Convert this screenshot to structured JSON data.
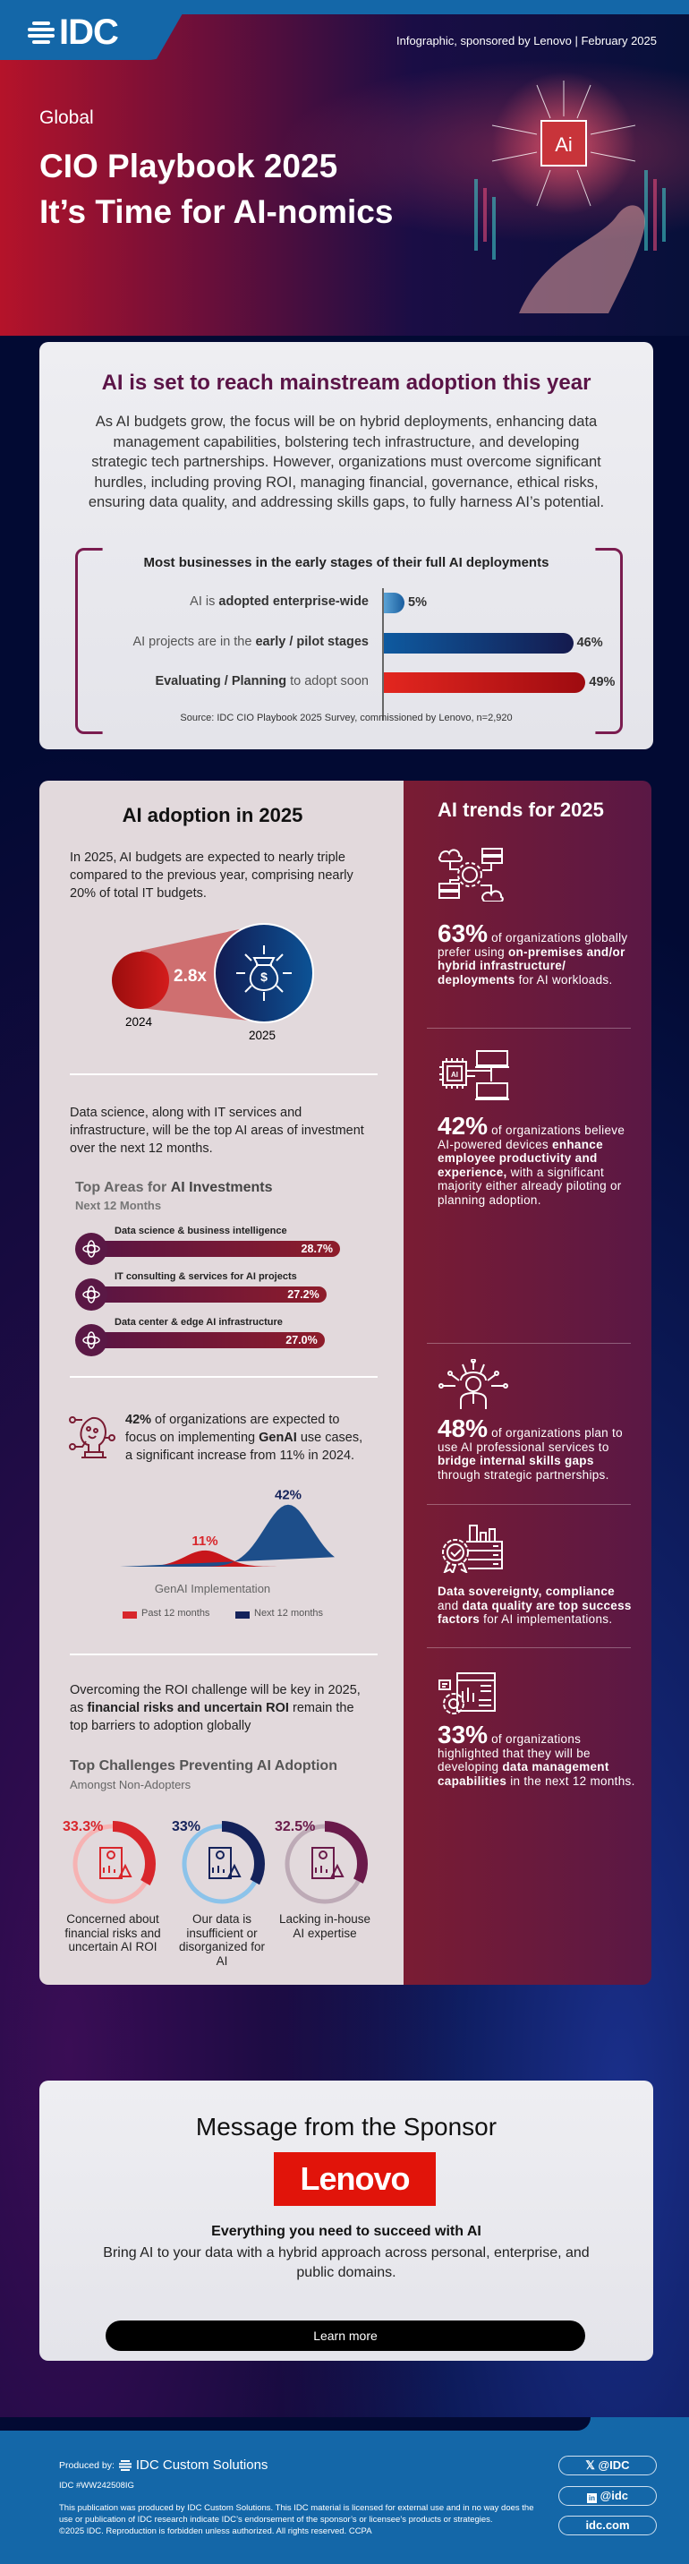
{
  "header": {
    "logo": "IDC",
    "sponsored": "Infographic, sponsored by Lenovo  |  February 2025",
    "region": "Global",
    "title_line1": "CIO Playbook 2025",
    "title_line2": "It’s Time for AI-nomics",
    "chip_label": "Ai"
  },
  "intro": {
    "title": "AI is set to reach mainstream adoption this year",
    "paragraph": "As AI budgets grow, the focus will be on hybrid deployments, enhancing data management capabilities, bolstering tech infrastructure, and developing strategic tech partnerships. However, organizations must overcome significant hurdles, including proving ROI, managing financial, governance, ethical risks, ensuring data quality, and addressing skills gaps, to fully harness AI’s potential."
  },
  "deployment_chart": {
    "title": "Most businesses in the early stages of their  full AI deployments",
    "source": "Source: IDC CIO Playbook 2025 Survey, commissioned by Lenovo, n=2,920",
    "rows": [
      {
        "pre": "AI is ",
        "bold": "adopted enterprise-wide",
        "post": "",
        "value": 5,
        "label": "5%"
      },
      {
        "pre": "AI projects are in the ",
        "bold": "early / pilot stages",
        "post": "",
        "value": 46,
        "label": "46%"
      },
      {
        "pre": "",
        "bold": "Evaluating / Planning",
        "post": " to adopt soon",
        "value": 49,
        "label": "49%"
      }
    ],
    "colors": [
      "#2f7fc0",
      "#0e4a8c",
      "#c8161b"
    ]
  },
  "adoption": {
    "title": "AI adoption in 2025",
    "para1": "In 2025, AI budgets are expected to nearly triple compared to the previous year, comprising nearly 20% of total IT budgets.",
    "multiplier": "2.8x",
    "year_a": "2024",
    "year_b": "2025",
    "para2": "Data science, along with IT services and infrastructure, will be the top AI areas of investment over the next 12 months.",
    "invest_title_a": "Top Areas for ",
    "invest_title_b": "AI Investments",
    "invest_sub": "Next 12 Months",
    "investments": [
      {
        "label": "Data science & business intelligence",
        "value": 28.7,
        "pct": "28.7%"
      },
      {
        "label": "IT consulting & services for AI projects",
        "value": 27.2,
        "pct": "27.2%"
      },
      {
        "label": "Data center & edge AI infrastructure",
        "value": 27.0,
        "pct": "27.0%"
      }
    ],
    "genai_a": "42%",
    "genai_b": " of organizations are expected to focus on implementing ",
    "genai_c": "GenAI",
    "genai_d": " use cases, a significant increase from 11% in 2024.",
    "genai_chart": {
      "title": "GenAI Implementation",
      "series": [
        {
          "name": "Past 12 months",
          "value": 11,
          "label": "11%",
          "color": "#d8262b"
        },
        {
          "name": "Next 12 months",
          "value": 42,
          "label": "42%",
          "color": "#14225a"
        }
      ]
    },
    "roi_a": "Overcoming the ROI challenge will be key in 2025, as ",
    "roi_b": "financial risks and uncertain ROI",
    "roi_c": " remain the top barriers to adoption globally",
    "challenges_title": "Top Challenges Preventing AI Adoption",
    "challenges_sub": "Amongst Non-Adopters",
    "challenges": [
      {
        "pct": "33.3%",
        "value": 33.3,
        "label": "Concerned about financial risks and uncertain AI ROI",
        "color": "#d8262b",
        "faint": "#f6b3b3"
      },
      {
        "pct": "33%",
        "value": 33,
        "label": "Our data is insufficient or disorganized for AI",
        "color": "#14225a",
        "faint": "#8cc3ea"
      },
      {
        "pct": "32.5%",
        "value": 32.5,
        "label": "Lacking in-house AI expertise",
        "color": "#6a1a4a",
        "faint": "#bdaab6"
      }
    ]
  },
  "trends": {
    "title": "AI trends for 2025",
    "t1": {
      "big": "63%",
      "a": " of organizations globally prefer using ",
      "b": "on-premises and/or hybrid infrastructure/ deployments",
      "c": " for AI workloads."
    },
    "t2": {
      "big": "42%",
      "a": " of organizations believe AI-powered devices ",
      "b": "enhance employee productivity and experience,",
      "c": " with a significant majority either already piloting or planning adoption."
    },
    "t3": {
      "big": "48%",
      "a": " of organizations plan to use AI professional services to ",
      "b": "bridge internal skills gaps",
      "c": " through strategic partnerships."
    },
    "t4": {
      "b1": "Data sovereignty, compliance",
      "a": " and ",
      "b2": "data quality are top success factors",
      "c": " for AI implementations."
    },
    "t5": {
      "big": "33%",
      "a": " of organizations highlighted that they will be developing ",
      "b": "data management capabilities",
      "c": " in the next 12 months."
    },
    "chip_label": "AI"
  },
  "sponsor": {
    "title": "Message from the Sponsor",
    "logo": "Lenovo",
    "headline": "Everything you need to succeed with AI",
    "text": "Bring AI to your data with a hybrid approach across personal, enterprise, and public domains.",
    "button": "Learn more"
  },
  "footer": {
    "produced_by": "Produced by:",
    "producer": "IDC Custom Solutions",
    "doc_id": "IDC #WW242508IG",
    "disclaimer1": "This publication was produced by IDC Custom Solutions. This IDC material is licensed for external use and in no way does the",
    "disclaimer2": "use or publication of IDC research indicate IDC’s endorsement of the sponsor’s or licensee’s products or strategies.",
    "disclaimer3": "©2025 IDC. Reproduction is forbidden unless authorized. All rights reserved. CCPA",
    "x_handle": "@IDC",
    "linkedin_handle": "@idc",
    "website": "idc.com"
  }
}
